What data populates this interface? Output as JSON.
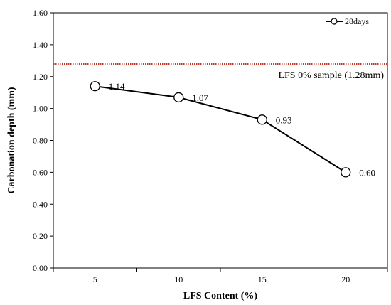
{
  "chart_data": {
    "type": "line",
    "title": "",
    "xlabel": "LFS Content (%)",
    "ylabel": "Carbonation depth (mm)",
    "x": [
      5,
      10,
      15,
      20
    ],
    "x_tick_labels": [
      "5",
      "10",
      "15",
      "20"
    ],
    "ylim": [
      0,
      1.6
    ],
    "y_ticks": [
      0,
      0.2,
      0.4,
      0.6,
      0.8,
      1.0,
      1.2,
      1.4,
      1.6
    ],
    "y_tick_labels": [
      "0.00",
      "0.20",
      "0.40",
      "0.60",
      "0.80",
      "1.00",
      "1.20",
      "1.40",
      "1.60"
    ],
    "grid": false,
    "legend_position": "top-right",
    "series": [
      {
        "name": "28days",
        "values": [
          1.14,
          1.07,
          0.93,
          0.6
        ],
        "data_labels": [
          "1.14",
          "1.07",
          "0.93",
          "0.60"
        ],
        "color": "#000000",
        "marker": "open-circle"
      }
    ],
    "reference_line": {
      "value": 1.28,
      "label": "LFS 0% sample (1.28mm)",
      "color": "#c0392b",
      "style": "dotted"
    }
  }
}
